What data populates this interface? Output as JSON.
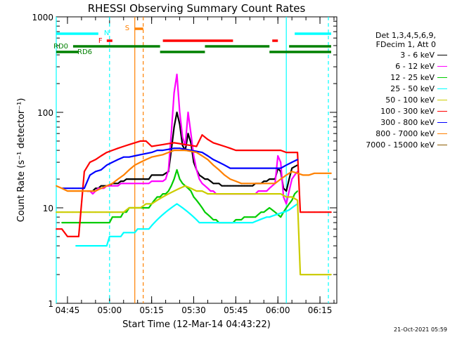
{
  "chart_data": {
    "type": "line",
    "title": "RHESSI Observing Summary Count Rates",
    "xlabel": "Start Time (12-Mar-14 04:43:22)",
    "ylabel": "Count Rate (s⁻¹ detector⁻¹)",
    "yscale": "log",
    "ylim": [
      1,
      1000
    ],
    "xlim_minutes": [
      -2,
      98
    ],
    "x_ticks": [
      {
        "m": 2,
        "label": "04:45"
      },
      {
        "m": 17,
        "label": "05:00"
      },
      {
        "m": 32,
        "label": "05:15"
      },
      {
        "m": 47,
        "label": "05:30"
      },
      {
        "m": 62,
        "label": "05:45"
      },
      {
        "m": 77,
        "label": "06:00"
      },
      {
        "m": 92,
        "label": "06:15"
      }
    ],
    "y_ticks": [
      {
        "v": 1,
        "label": "1"
      },
      {
        "v": 10,
        "label": "10"
      },
      {
        "v": 100,
        "label": "100"
      },
      {
        "v": 1000,
        "label": "1000"
      }
    ],
    "legend_header": [
      "Det 1,3,4,5,6,9,",
      "FDecim 1, Att 0"
    ],
    "series": [
      {
        "name": "3 - 6 keV",
        "color": "#000000",
        "x": [
          9,
          10,
          11,
          12,
          13,
          14,
          15,
          16,
          17,
          18,
          19,
          20,
          21,
          22,
          23,
          24,
          25,
          26,
          27,
          28,
          29,
          30,
          31,
          32,
          33,
          34,
          35,
          36,
          37,
          38,
          39,
          40,
          41,
          42,
          43,
          44,
          45,
          46,
          47,
          48,
          49,
          50,
          51,
          52,
          53,
          54,
          55,
          56,
          57,
          58,
          59,
          60,
          61,
          62,
          63,
          64,
          65,
          66,
          67,
          68,
          69,
          70,
          71,
          72,
          73,
          74,
          75,
          76,
          77,
          78,
          79,
          80,
          81,
          82,
          83,
          84
        ],
        "y": [
          15,
          15,
          15,
          16,
          16,
          17,
          17,
          17,
          17,
          18,
          18,
          18,
          19,
          19,
          20,
          20,
          20,
          20,
          20,
          20,
          20,
          20,
          20,
          22,
          22,
          22,
          22,
          22,
          23,
          24,
          40,
          70,
          100,
          75,
          45,
          40,
          60,
          48,
          30,
          25,
          22,
          21,
          20,
          20,
          19,
          18,
          18,
          18,
          17,
          17,
          17,
          17,
          17,
          17,
          17,
          17,
          17,
          17,
          17,
          17,
          18,
          18,
          18,
          19,
          19,
          20,
          20,
          20,
          26,
          24,
          16,
          15,
          20,
          26,
          27,
          28
        ]
      },
      {
        "name": "6 - 12 keV",
        "color": "#ff00ff",
        "x": [
          9,
          10,
          11,
          12,
          13,
          14,
          15,
          16,
          17,
          18,
          19,
          20,
          21,
          22,
          23,
          24,
          25,
          26,
          27,
          28,
          29,
          30,
          31,
          32,
          33,
          34,
          35,
          36,
          37,
          38,
          39,
          40,
          41,
          42,
          43,
          44,
          45,
          46,
          47,
          48,
          49,
          50,
          51,
          52,
          53,
          54,
          55,
          56,
          57,
          58,
          59,
          60,
          61,
          62,
          63,
          64,
          65,
          66,
          67,
          68,
          69,
          70,
          71,
          72,
          73,
          74,
          75,
          76,
          77,
          78,
          79,
          80,
          81,
          82,
          83,
          84
        ],
        "y": [
          15,
          15,
          14,
          15,
          16,
          16,
          16,
          17,
          17,
          17,
          17,
          17,
          18,
          18,
          18,
          18,
          18,
          18,
          18,
          18,
          18,
          18,
          18,
          19,
          19,
          19,
          19,
          19,
          20,
          25,
          60,
          160,
          250,
          100,
          55,
          45,
          100,
          60,
          35,
          25,
          20,
          18,
          17,
          16,
          15,
          15,
          14,
          14,
          14,
          14,
          14,
          14,
          14,
          14,
          14,
          14,
          14,
          14,
          14,
          14,
          14,
          15,
          15,
          15,
          15,
          16,
          17,
          18,
          35,
          30,
          13,
          11,
          15,
          20,
          22,
          24
        ]
      },
      {
        "name": "12 - 25 keV",
        "color": "#00cc00",
        "x": [
          0,
          3,
          6,
          9,
          12,
          15,
          17,
          18,
          19,
          20,
          21,
          22,
          23,
          24,
          25,
          26,
          27,
          28,
          29,
          30,
          31,
          32,
          33,
          34,
          35,
          36,
          37,
          38,
          39,
          40,
          41,
          42,
          43,
          44,
          45,
          46,
          47,
          48,
          49,
          50,
          51,
          52,
          53,
          54,
          55,
          56,
          57,
          58,
          59,
          60,
          61,
          62,
          63,
          64,
          65,
          66,
          67,
          68,
          69,
          70,
          71,
          72,
          73,
          74,
          75,
          76,
          77,
          78,
          79,
          80,
          81,
          82,
          83,
          84
        ],
        "y": [
          7,
          7,
          7,
          7,
          7,
          7,
          7,
          8,
          8,
          8,
          8,
          9,
          9,
          10,
          10,
          10,
          10,
          10,
          10,
          10,
          10,
          11,
          12,
          13,
          13,
          14,
          14,
          15,
          17,
          20,
          25,
          20,
          18,
          17,
          16,
          15,
          13,
          12,
          11,
          10,
          9,
          8.5,
          8,
          7.5,
          7.5,
          7,
          7,
          7,
          7,
          7,
          7,
          7.5,
          7.5,
          7.5,
          8,
          8,
          8,
          8,
          8,
          8.5,
          9,
          9,
          9.5,
          10,
          9.5,
          9,
          8.5,
          8,
          9,
          10,
          11,
          12,
          14,
          15
        ]
      },
      {
        "name": "25 - 50 keV",
        "color": "#00ffff",
        "x": [
          5,
          6,
          7,
          8,
          9,
          10,
          11,
          12,
          13,
          14,
          15,
          16,
          17,
          18,
          19,
          20,
          21,
          22,
          23,
          24,
          25,
          26,
          27,
          28,
          29,
          30,
          31,
          32,
          33,
          34,
          35,
          36,
          37,
          38,
          39,
          40,
          41,
          42,
          43,
          44,
          45,
          46,
          47,
          48,
          49,
          50,
          51,
          52,
          53,
          54,
          55,
          56,
          57,
          58,
          59,
          60,
          61,
          62,
          63,
          64,
          65,
          66,
          67,
          68,
          69,
          70,
          71,
          72,
          73,
          74,
          75,
          76,
          77,
          78,
          79,
          80,
          81,
          82,
          83,
          84
        ],
        "y": [
          4,
          4,
          4,
          4,
          4,
          4,
          4,
          4,
          4,
          4,
          4,
          4,
          5,
          5,
          5,
          5,
          5,
          5.5,
          5.5,
          5.5,
          5.5,
          5.5,
          6,
          6,
          6,
          6,
          6,
          6.5,
          7,
          7.5,
          8,
          8.5,
          9,
          9.5,
          10,
          10.5,
          11,
          10.5,
          10,
          9.5,
          9,
          8.5,
          8,
          7.5,
          7,
          7,
          7,
          7,
          7,
          7,
          7,
          7,
          7,
          7,
          7,
          7,
          7,
          7,
          7,
          7,
          7,
          7,
          7,
          7,
          7.2,
          7.4,
          7.6,
          7.8,
          8,
          8,
          8.2,
          8.4,
          8.6,
          8.8,
          9,
          9.2,
          9.5,
          10,
          10.5,
          11
        ]
      },
      {
        "name": "50 - 100 keV",
        "color": "#cccc00",
        "x": [
          -2,
          0,
          2,
          4,
          6,
          8,
          10,
          12,
          14,
          16,
          18,
          20,
          22,
          24,
          26,
          28,
          30,
          32,
          34,
          36,
          38,
          40,
          42,
          44,
          46,
          48,
          50,
          52,
          54,
          56,
          58,
          60,
          62,
          64,
          66,
          68,
          70,
          72,
          74,
          76,
          78,
          80,
          82,
          84,
          85,
          86,
          88,
          90,
          92,
          94,
          96
        ],
        "y": [
          9,
          9,
          9,
          9,
          9,
          9,
          9,
          9,
          9,
          9,
          9,
          9,
          9,
          10,
          10,
          10,
          11,
          11,
          12,
          13,
          14,
          15,
          16,
          17,
          16,
          15,
          15,
          14,
          14,
          14,
          14,
          14,
          14,
          14,
          14,
          14,
          14,
          14,
          14,
          14,
          14,
          13,
          13,
          12,
          2,
          2,
          2,
          2,
          2,
          2,
          2
        ]
      },
      {
        "name": "100 - 300 keV",
        "color": "#ff0000",
        "x": [
          -2,
          0,
          2,
          4,
          6,
          8,
          10,
          12,
          14,
          16,
          18,
          20,
          22,
          24,
          26,
          28,
          30,
          32,
          34,
          36,
          38,
          40,
          42,
          44,
          46,
          48,
          50,
          52,
          54,
          56,
          58,
          60,
          62,
          64,
          66,
          68,
          70,
          72,
          74,
          76,
          78,
          80,
          82,
          84,
          85,
          86,
          88,
          90,
          92,
          94,
          96
        ],
        "y": [
          6,
          6,
          5,
          5,
          5,
          24,
          30,
          32,
          35,
          38,
          40,
          42,
          44,
          46,
          48,
          50,
          50,
          44,
          45,
          46,
          47,
          48,
          47,
          46,
          45,
          44,
          58,
          52,
          48,
          46,
          44,
          42,
          40,
          40,
          40,
          40,
          40,
          40,
          40,
          40,
          40,
          38,
          38,
          38,
          9,
          9,
          9,
          9,
          9,
          9,
          9
        ]
      },
      {
        "name": "300 - 800 keV",
        "color": "#0000ff",
        "x": [
          0,
          2,
          4,
          6,
          8,
          10,
          12,
          14,
          16,
          18,
          20,
          22,
          24,
          26,
          28,
          30,
          32,
          34,
          36,
          38,
          40,
          42,
          44,
          46,
          48,
          50,
          52,
          54,
          56,
          58,
          60,
          62,
          64,
          66,
          68,
          70,
          72,
          74,
          76,
          78,
          80,
          82,
          84
        ],
        "y": [
          16,
          16,
          16,
          16,
          16,
          22,
          24,
          25,
          28,
          30,
          32,
          34,
          34,
          35,
          36,
          37,
          38,
          40,
          40,
          41,
          42,
          42,
          41,
          40,
          39,
          38,
          35,
          32,
          30,
          28,
          26,
          26,
          26,
          26,
          26,
          26,
          26,
          26,
          26,
          26,
          28,
          30,
          32
        ]
      },
      {
        "name": "800 - 7000 keV",
        "color": "#ff8000",
        "x": [
          -2,
          0,
          2,
          4,
          6,
          8,
          10,
          12,
          14,
          16,
          18,
          20,
          22,
          24,
          26,
          28,
          30,
          32,
          34,
          36,
          38,
          40,
          42,
          44,
          46,
          48,
          50,
          52,
          54,
          56,
          58,
          60,
          62,
          64,
          66,
          68,
          70,
          72,
          74,
          76,
          78,
          80,
          82,
          84,
          86,
          88,
          90,
          92,
          94,
          96
        ],
        "y": [
          17,
          16,
          15,
          15,
          15,
          15,
          15,
          15,
          16,
          17,
          18,
          20,
          22,
          25,
          28,
          30,
          32,
          34,
          35,
          36,
          38,
          40,
          40,
          40,
          39,
          38,
          35,
          32,
          28,
          25,
          22,
          20,
          19,
          18,
          18,
          18,
          18,
          18,
          18,
          18,
          20,
          22,
          24,
          23,
          22,
          22,
          23,
          23,
          23,
          23
        ]
      },
      {
        "name": "7000 - 15000 keV",
        "color": "#8b5a00",
        "x": [],
        "y": []
      }
    ],
    "status_bars": [
      {
        "label": "N",
        "color": "#00ffff",
        "level": 1.3,
        "spans": [
          [
            -2,
            13
          ],
          [
            83,
            96
          ]
        ]
      },
      {
        "label": "S",
        "color": "#ff8000",
        "level": 1.4,
        "spans": [
          [
            26,
            29
          ]
        ]
      },
      {
        "label": "F",
        "color": "#ff0000",
        "level": 1.1,
        "spans": [
          [
            16,
            18
          ],
          [
            36,
            61
          ],
          [
            75,
            77
          ]
        ]
      },
      {
        "label": "RD0",
        "color": "#008000",
        "level": 1.0,
        "spans": [
          [
            4,
            35
          ],
          [
            51,
            74
          ],
          [
            81,
            96
          ]
        ]
      },
      {
        "label": "RD6",
        "color": "#008000",
        "level": 0.9,
        "spans": [
          [
            -2,
            6
          ],
          [
            35,
            51
          ],
          [
            74,
            96
          ]
        ]
      }
    ],
    "vlines": [
      {
        "m": -2,
        "color": "#00ffff",
        "style": "solid"
      },
      {
        "m": 17,
        "color": "#00ffff",
        "style": "dashed"
      },
      {
        "m": 26,
        "color": "#ff8000",
        "style": "solid"
      },
      {
        "m": 29,
        "color": "#ff8000",
        "style": "dashed"
      },
      {
        "m": 80,
        "color": "#00ffff",
        "style": "solid"
      },
      {
        "m": 95,
        "color": "#00ffff",
        "style": "dashed"
      }
    ],
    "legend_placement": "right"
  },
  "footer": {
    "date": "21-Oct-2021 05:59"
  }
}
